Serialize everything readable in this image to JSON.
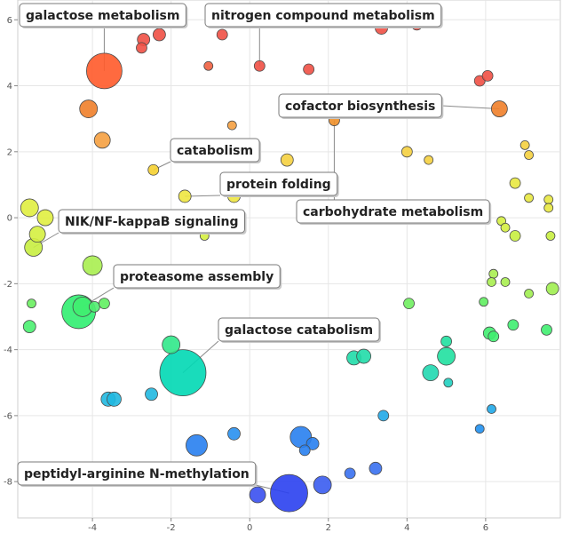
{
  "chart_data": {
    "type": "scatter",
    "title": "",
    "xlabel": "",
    "ylabel": "",
    "xlim": [
      -5.9,
      7.9
    ],
    "ylim": [
      -9.1,
      6.6
    ],
    "grid": true,
    "x_ticks": [
      -4,
      -2,
      0,
      2,
      4,
      6
    ],
    "y_ticks": [
      -8,
      -6,
      -4,
      -2,
      0,
      2,
      4,
      6
    ],
    "points": [
      {
        "x": -3.7,
        "y": 4.45,
        "size": 20,
        "color": "#ff5a2a"
      },
      {
        "x": -2.3,
        "y": 5.55,
        "size": 7,
        "color": "#f05045"
      },
      {
        "x": -2.7,
        "y": 5.4,
        "size": 7,
        "color": "#f05045"
      },
      {
        "x": -2.75,
        "y": 5.15,
        "size": 6,
        "color": "#f05045"
      },
      {
        "x": -1.75,
        "y": 6.2,
        "size": 6,
        "color": "#f05045"
      },
      {
        "x": -0.7,
        "y": 5.55,
        "size": 6,
        "color": "#f05045"
      },
      {
        "x": -1.05,
        "y": 4.6,
        "size": 5,
        "color": "#f06040"
      },
      {
        "x": 0.25,
        "y": 4.6,
        "size": 6,
        "color": "#f05045"
      },
      {
        "x": 1.5,
        "y": 4.5,
        "size": 6,
        "color": "#f05045"
      },
      {
        "x": 3.35,
        "y": 5.75,
        "size": 7,
        "color": "#f05045"
      },
      {
        "x": 4.25,
        "y": 5.85,
        "size": 6,
        "color": "#f05045"
      },
      {
        "x": 5.85,
        "y": 4.15,
        "size": 6,
        "color": "#f05045"
      },
      {
        "x": 6.05,
        "y": 4.3,
        "size": 6,
        "color": "#f05045"
      },
      {
        "x": -4.1,
        "y": 3.3,
        "size": 10,
        "color": "#f0802a"
      },
      {
        "x": 6.35,
        "y": 3.3,
        "size": 9,
        "color": "#f0802a"
      },
      {
        "x": -3.75,
        "y": 2.35,
        "size": 9,
        "color": "#f5a040"
      },
      {
        "x": -0.45,
        "y": 2.8,
        "size": 5,
        "color": "#f5a040"
      },
      {
        "x": 2.15,
        "y": 2.95,
        "size": 6,
        "color": "#f0902a"
      },
      {
        "x": -2.45,
        "y": 1.45,
        "size": 6,
        "color": "#f5d030"
      },
      {
        "x": 0.95,
        "y": 1.75,
        "size": 7,
        "color": "#f5d040"
      },
      {
        "x": 4.0,
        "y": 2.0,
        "size": 6,
        "color": "#f5d040"
      },
      {
        "x": 4.55,
        "y": 1.75,
        "size": 5,
        "color": "#f5d040"
      },
      {
        "x": 7.0,
        "y": 2.2,
        "size": 5,
        "color": "#f5d040"
      },
      {
        "x": 7.1,
        "y": 1.9,
        "size": 5,
        "color": "#f5d040"
      },
      {
        "x": -1.65,
        "y": 0.65,
        "size": 7,
        "color": "#eee540"
      },
      {
        "x": -0.4,
        "y": 0.65,
        "size": 7,
        "color": "#eee540"
      },
      {
        "x": 6.75,
        "y": 1.05,
        "size": 6,
        "color": "#e8e840"
      },
      {
        "x": 7.1,
        "y": 0.6,
        "size": 5,
        "color": "#e8e840"
      },
      {
        "x": 7.6,
        "y": 0.55,
        "size": 5,
        "color": "#e8e840"
      },
      {
        "x": 7.6,
        "y": 0.3,
        "size": 5,
        "color": "#e8e840"
      },
      {
        "x": -5.6,
        "y": 0.3,
        "size": 10,
        "color": "#e0ee40"
      },
      {
        "x": -5.2,
        "y": 0.0,
        "size": 9,
        "color": "#e0ee40"
      },
      {
        "x": -5.4,
        "y": -0.5,
        "size": 9,
        "color": "#d5f040"
      },
      {
        "x": -5.5,
        "y": -0.9,
        "size": 10,
        "color": "#c8ee40"
      },
      {
        "x": -1.15,
        "y": -0.55,
        "size": 5,
        "color": "#d5f040"
      },
      {
        "x": 6.4,
        "y": -0.1,
        "size": 5,
        "color": "#d5f040"
      },
      {
        "x": 6.5,
        "y": -0.3,
        "size": 5,
        "color": "#d5f040"
      },
      {
        "x": 6.75,
        "y": -0.55,
        "size": 6,
        "color": "#c8ee40"
      },
      {
        "x": 7.65,
        "y": -0.55,
        "size": 5,
        "color": "#c8ee40"
      },
      {
        "x": -4.0,
        "y": -1.45,
        "size": 11,
        "color": "#a8ee50"
      },
      {
        "x": 6.2,
        "y": -1.7,
        "size": 5,
        "color": "#a8ee50"
      },
      {
        "x": 6.15,
        "y": -1.95,
        "size": 5,
        "color": "#a8ee50"
      },
      {
        "x": 6.5,
        "y": -1.95,
        "size": 5,
        "color": "#a8ee50"
      },
      {
        "x": 7.7,
        "y": -2.15,
        "size": 7,
        "color": "#a0ee50"
      },
      {
        "x": 7.1,
        "y": -2.3,
        "size": 5,
        "color": "#a0ee50"
      },
      {
        "x": -5.55,
        "y": -2.6,
        "size": 5,
        "color": "#6af060"
      },
      {
        "x": -5.6,
        "y": -3.3,
        "size": 7,
        "color": "#4af070"
      },
      {
        "x": -4.35,
        "y": -2.85,
        "size": 19,
        "color": "#30ee70"
      },
      {
        "x": -4.25,
        "y": -2.7,
        "size": 11,
        "color": "#40ee70"
      },
      {
        "x": -3.95,
        "y": -2.7,
        "size": 6,
        "color": "#50ee70"
      },
      {
        "x": -3.7,
        "y": -2.6,
        "size": 6,
        "color": "#60f060"
      },
      {
        "x": 4.05,
        "y": -2.6,
        "size": 6,
        "color": "#70ee60"
      },
      {
        "x": 5.95,
        "y": -2.55,
        "size": 5,
        "color": "#60ee60"
      },
      {
        "x": 6.7,
        "y": -3.25,
        "size": 6,
        "color": "#40ee70"
      },
      {
        "x": 6.1,
        "y": -3.5,
        "size": 7,
        "color": "#40ee70"
      },
      {
        "x": 6.2,
        "y": -3.6,
        "size": 6,
        "color": "#40ee70"
      },
      {
        "x": 7.55,
        "y": -3.4,
        "size": 6,
        "color": "#40ee70"
      },
      {
        "x": -2.0,
        "y": -3.85,
        "size": 10,
        "color": "#30e88a"
      },
      {
        "x": -1.7,
        "y": -4.7,
        "size": 26,
        "color": "#00d8b4"
      },
      {
        "x": 5.0,
        "y": -3.75,
        "size": 6,
        "color": "#20e0a0"
      },
      {
        "x": 5.0,
        "y": -4.2,
        "size": 10,
        "color": "#20e0a0"
      },
      {
        "x": 4.6,
        "y": -4.7,
        "size": 9,
        "color": "#20d8b0"
      },
      {
        "x": 2.65,
        "y": -4.25,
        "size": 8,
        "color": "#20dca8"
      },
      {
        "x": 2.9,
        "y": -4.2,
        "size": 8,
        "color": "#20dca8"
      },
      {
        "x": 5.05,
        "y": -5.0,
        "size": 5,
        "color": "#20d0c0"
      },
      {
        "x": -3.6,
        "y": -5.5,
        "size": 8,
        "color": "#20b8e0"
      },
      {
        "x": -3.45,
        "y": -5.5,
        "size": 8,
        "color": "#20b8e0"
      },
      {
        "x": -2.5,
        "y": -5.35,
        "size": 7,
        "color": "#20b8e0"
      },
      {
        "x": 3.4,
        "y": -6.0,
        "size": 6,
        "color": "#20a8e8"
      },
      {
        "x": 6.15,
        "y": -5.8,
        "size": 5,
        "color": "#20a8e8"
      },
      {
        "x": 5.85,
        "y": -6.4,
        "size": 5,
        "color": "#2090f0"
      },
      {
        "x": -1.35,
        "y": -6.9,
        "size": 12,
        "color": "#2880f0"
      },
      {
        "x": -0.4,
        "y": -6.55,
        "size": 7,
        "color": "#2890f0"
      },
      {
        "x": 1.3,
        "y": -6.65,
        "size": 12,
        "color": "#2880f0"
      },
      {
        "x": 1.6,
        "y": -6.85,
        "size": 7,
        "color": "#2880f0"
      },
      {
        "x": 1.4,
        "y": -7.05,
        "size": 6,
        "color": "#2880f0"
      },
      {
        "x": 2.55,
        "y": -7.75,
        "size": 6,
        "color": "#3870f0"
      },
      {
        "x": 3.2,
        "y": -7.6,
        "size": 7,
        "color": "#3870f0"
      },
      {
        "x": 1.85,
        "y": -8.1,
        "size": 10,
        "color": "#3a5cf0"
      },
      {
        "x": 1.0,
        "y": -8.35,
        "size": 21,
        "color": "#2a40f0"
      },
      {
        "x": 0.2,
        "y": -8.4,
        "size": 9,
        "color": "#3a50f0"
      }
    ],
    "labels": [
      {
        "text": "galactose metabolism",
        "x": -3.7,
        "y": 4.45
      },
      {
        "text": "nitrogen compound metabolism",
        "x": 0.25,
        "y": 4.6
      },
      {
        "text": "cofactor biosynthesis",
        "x": 6.35,
        "y": 3.3
      },
      {
        "text": "catabolism",
        "x": -2.45,
        "y": 1.45
      },
      {
        "text": "protein folding",
        "x": -1.65,
        "y": 0.65
      },
      {
        "text": "carbohydrate metabolism",
        "x": 2.15,
        "y": 2.95
      },
      {
        "text": "NIK/NF-kappaB signaling",
        "x": -5.5,
        "y": -0.9
      },
      {
        "text": "proteasome assembly",
        "x": -4.25,
        "y": -2.7
      },
      {
        "text": "galactose catabolism",
        "x": -1.7,
        "y": -4.7
      },
      {
        "text": "peptidyl-arginine N-methylation",
        "x": 1.0,
        "y": -8.35
      }
    ]
  }
}
